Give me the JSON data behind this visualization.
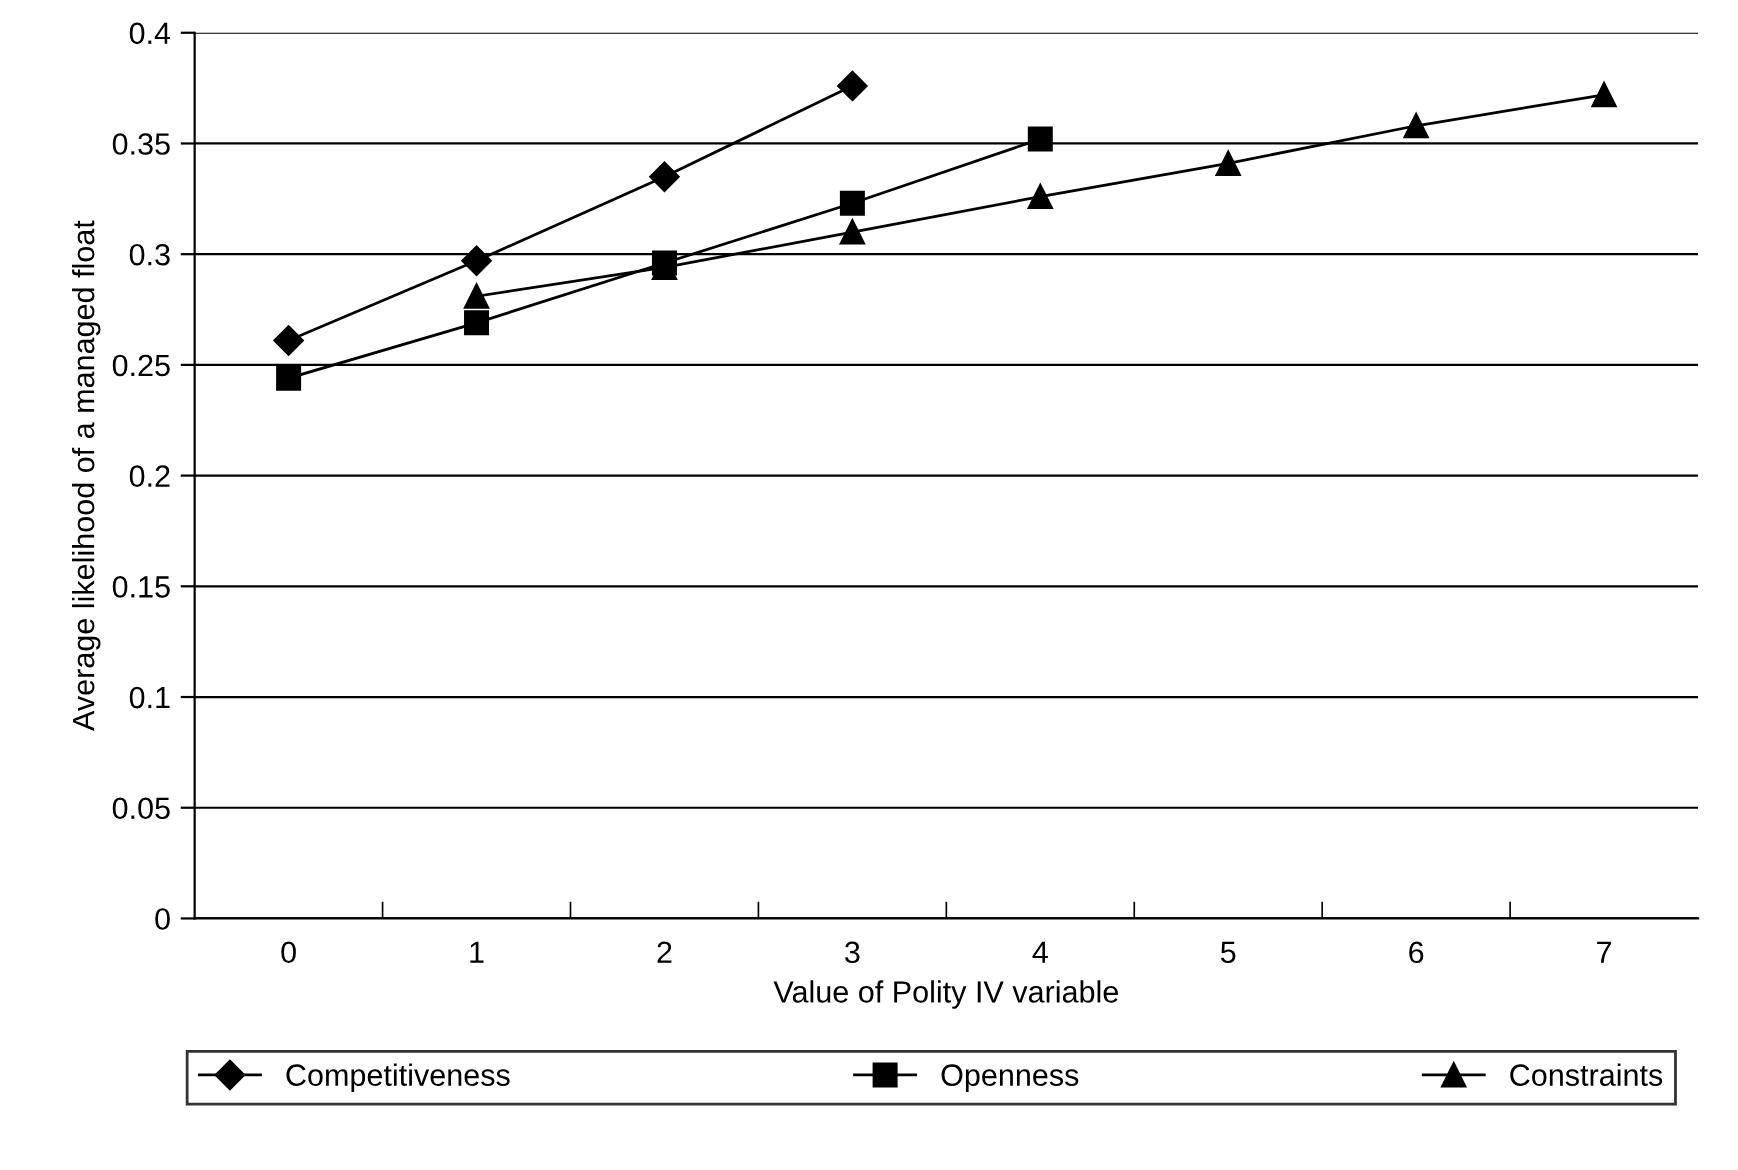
{
  "chart_data": {
    "type": "line",
    "xlabel": "Value of Polity IV variable",
    "ylabel": "Average likelihood of a managed float",
    "categories": [
      "0",
      "1",
      "2",
      "3",
      "4",
      "5",
      "6",
      "7"
    ],
    "series": [
      {
        "name": "Competitiveness",
        "color": "#000000",
        "marker": "diamond",
        "values": [
          0.261,
          0.297,
          0.335,
          0.376,
          null,
          null,
          null,
          null
        ]
      },
      {
        "name": "Openness",
        "color": "#000000",
        "marker": "square",
        "values": [
          0.244,
          0.269,
          0.296,
          0.323,
          0.352,
          null,
          null,
          null
        ]
      },
      {
        "name": "Constraints",
        "color": "#000000",
        "marker": "triangle",
        "values": [
          null,
          0.281,
          0.294,
          0.31,
          0.326,
          0.341,
          0.358,
          0.372
        ]
      }
    ],
    "ylim": [
      0,
      0.4
    ],
    "yticks": [
      0,
      0.05,
      0.1,
      0.15,
      0.2,
      0.25,
      0.3,
      0.35,
      0.4
    ],
    "grid": "y",
    "legend": "bottom",
    "line_style": "solid"
  }
}
